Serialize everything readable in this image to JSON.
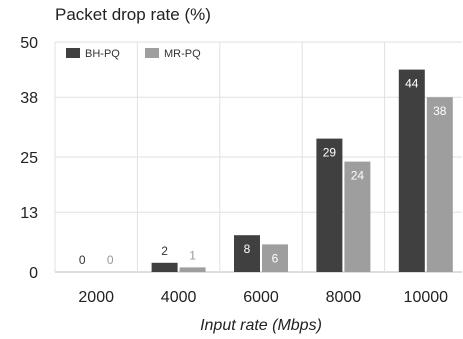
{
  "chart_data": {
    "type": "bar",
    "title": "Packet drop rate (%)",
    "xlabel": "Input rate (Mbps)",
    "ylabel": "",
    "categories": [
      "2000",
      "4000",
      "6000",
      "8000",
      "10000"
    ],
    "series": [
      {
        "name": "BH-PQ",
        "values": [
          0,
          2,
          8,
          29,
          44
        ],
        "color": "#404040"
      },
      {
        "name": "MR-PQ",
        "values": [
          0,
          1,
          6,
          24,
          38
        ],
        "color": "#9e9e9e"
      }
    ],
    "ylim": [
      0,
      50
    ],
    "yticks": [
      "0",
      "13",
      "25",
      "38",
      "50"
    ],
    "grid": true,
    "legend": "top-left"
  }
}
